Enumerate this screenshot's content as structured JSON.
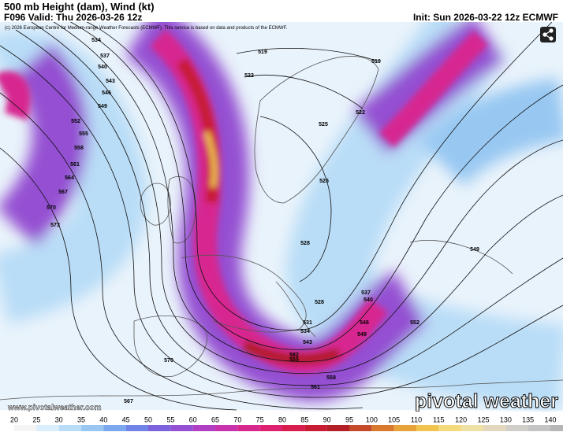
{
  "header": {
    "title": "500 mb Height (dam), Wind (kt)",
    "valid": "F096 Valid: Thu 2026-03-26 12z",
    "init": "Init: Sun 2026-03-22 12z ECMWF",
    "credit": "(c) 2026 European Centre for Medium-range Weather Forecasts (ECMWF). This service is based on data and products of the ECMWF."
  },
  "map": {
    "contour_labels": [
      "534",
      "537",
      "540",
      "543",
      "546",
      "549",
      "552",
      "555",
      "558",
      "561",
      "564",
      "567",
      "570",
      "573",
      "519",
      "519",
      "522",
      "522",
      "525",
      "525",
      "528",
      "549",
      "528",
      "531",
      "534",
      "537",
      "540",
      "543",
      "546",
      "549",
      "552",
      "555",
      "558",
      "561",
      "567",
      "570",
      "582"
    ],
    "website": "www.pivotalweather.com",
    "brand": "pivotal weather"
  },
  "colorbar": {
    "labels": [
      20,
      25,
      30,
      35,
      40,
      45,
      50,
      55,
      60,
      65,
      70,
      75,
      80,
      85,
      90,
      95,
      100,
      105,
      110,
      115,
      120,
      125,
      130,
      135,
      140
    ],
    "colors": [
      "#f4f4f4",
      "#dbeefb",
      "#b9ddf7",
      "#98c8f2",
      "#7aa7ee",
      "#6f84e6",
      "#7b62dc",
      "#9450d2",
      "#b03fc3",
      "#c832ad",
      "#d72890",
      "#dd2170",
      "#d81d4e",
      "#c81c35",
      "#b41f25",
      "#c44a2a",
      "#d8792e",
      "#e8a33a",
      "#f0c44f",
      "#f3da7a",
      "#efe0a3",
      "#e3d8bd",
      "#d2cfca",
      "#c4c4c4",
      "#b6b6b6"
    ]
  }
}
